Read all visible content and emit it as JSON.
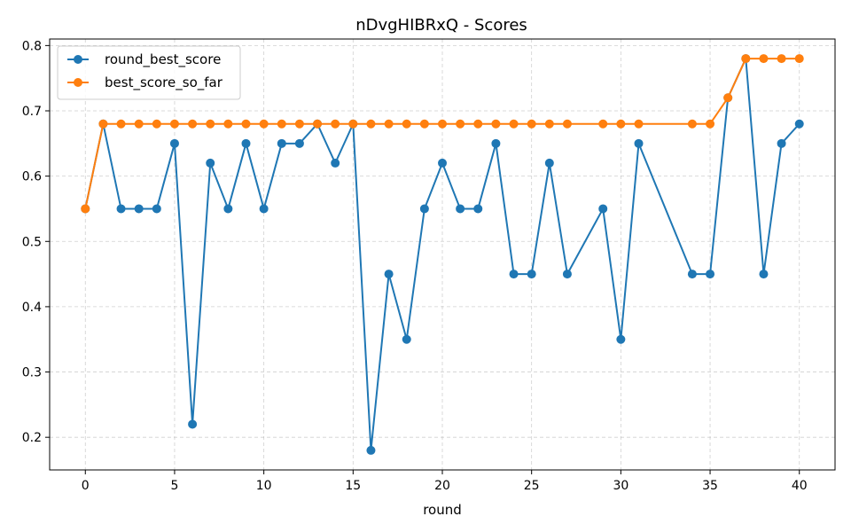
{
  "chart_data": {
    "type": "line",
    "title": "nDvgHIBRxQ - Scores",
    "xlabel": "round",
    "ylabel": "",
    "xlim": [
      -2,
      42
    ],
    "ylim": [
      0.15,
      0.81
    ],
    "xticks": [
      0,
      5,
      10,
      15,
      20,
      25,
      30,
      35,
      40
    ],
    "yticks": [
      0.2,
      0.3,
      0.4,
      0.5,
      0.6,
      0.7,
      0.8
    ],
    "grid": true,
    "legend_position": "top-left",
    "series": [
      {
        "name": "round_best_score",
        "color": "#1f77b4",
        "x": [
          0,
          1,
          2,
          3,
          4,
          5,
          6,
          7,
          8,
          9,
          10,
          11,
          12,
          13,
          14,
          15,
          16,
          17,
          18,
          19,
          20,
          21,
          22,
          23,
          24,
          25,
          26,
          27,
          29,
          30,
          31,
          34,
          35,
          36,
          37,
          38,
          39,
          40
        ],
        "values": [
          0.55,
          0.68,
          0.55,
          0.55,
          0.55,
          0.65,
          0.22,
          0.62,
          0.55,
          0.65,
          0.55,
          0.65,
          0.65,
          0.68,
          0.62,
          0.68,
          0.18,
          0.45,
          0.35,
          0.55,
          0.62,
          0.55,
          0.55,
          0.65,
          0.45,
          0.45,
          0.62,
          0.45,
          0.55,
          0.35,
          0.65,
          0.45,
          0.45,
          0.72,
          0.78,
          0.45,
          0.65,
          0.68
        ]
      },
      {
        "name": "best_score_so_far",
        "color": "#ff7f0e",
        "x": [
          0,
          1,
          2,
          3,
          4,
          5,
          6,
          7,
          8,
          9,
          10,
          11,
          12,
          13,
          14,
          15,
          16,
          17,
          18,
          19,
          20,
          21,
          22,
          23,
          24,
          25,
          26,
          27,
          29,
          30,
          31,
          34,
          35,
          36,
          37,
          38,
          39,
          40
        ],
        "values": [
          0.55,
          0.68,
          0.68,
          0.68,
          0.68,
          0.68,
          0.68,
          0.68,
          0.68,
          0.68,
          0.68,
          0.68,
          0.68,
          0.68,
          0.68,
          0.68,
          0.68,
          0.68,
          0.68,
          0.68,
          0.68,
          0.68,
          0.68,
          0.68,
          0.68,
          0.68,
          0.68,
          0.68,
          0.68,
          0.68,
          0.68,
          0.68,
          0.68,
          0.72,
          0.78,
          0.78,
          0.78,
          0.78
        ]
      }
    ]
  }
}
